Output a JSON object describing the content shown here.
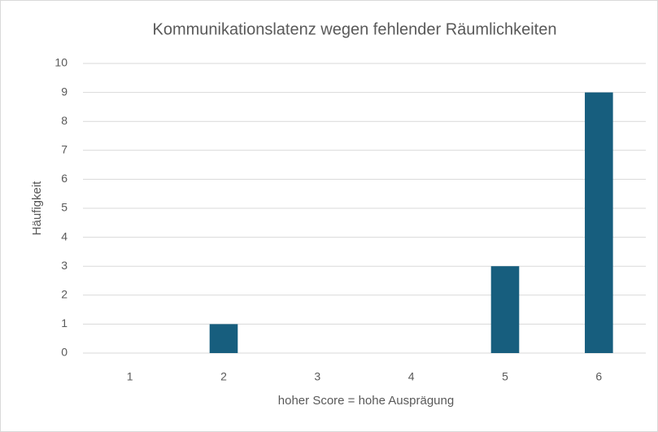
{
  "chart_data": {
    "type": "bar",
    "title": "Kommunikationslatenz wegen fehlender Räumlichkeiten",
    "x_label": "hoher Score = hohe Ausprägung",
    "y_label": "Häufigkeit",
    "categories": [
      "1",
      "2",
      "3",
      "4",
      "5",
      "6"
    ],
    "values": [
      0,
      1,
      0,
      0,
      3,
      9
    ],
    "color": "#175e7e",
    "ylim": [
      0,
      10
    ],
    "yticks": [
      0,
      1,
      2,
      3,
      4,
      5,
      6,
      7,
      8,
      9,
      10
    ],
    "grid": true
  }
}
